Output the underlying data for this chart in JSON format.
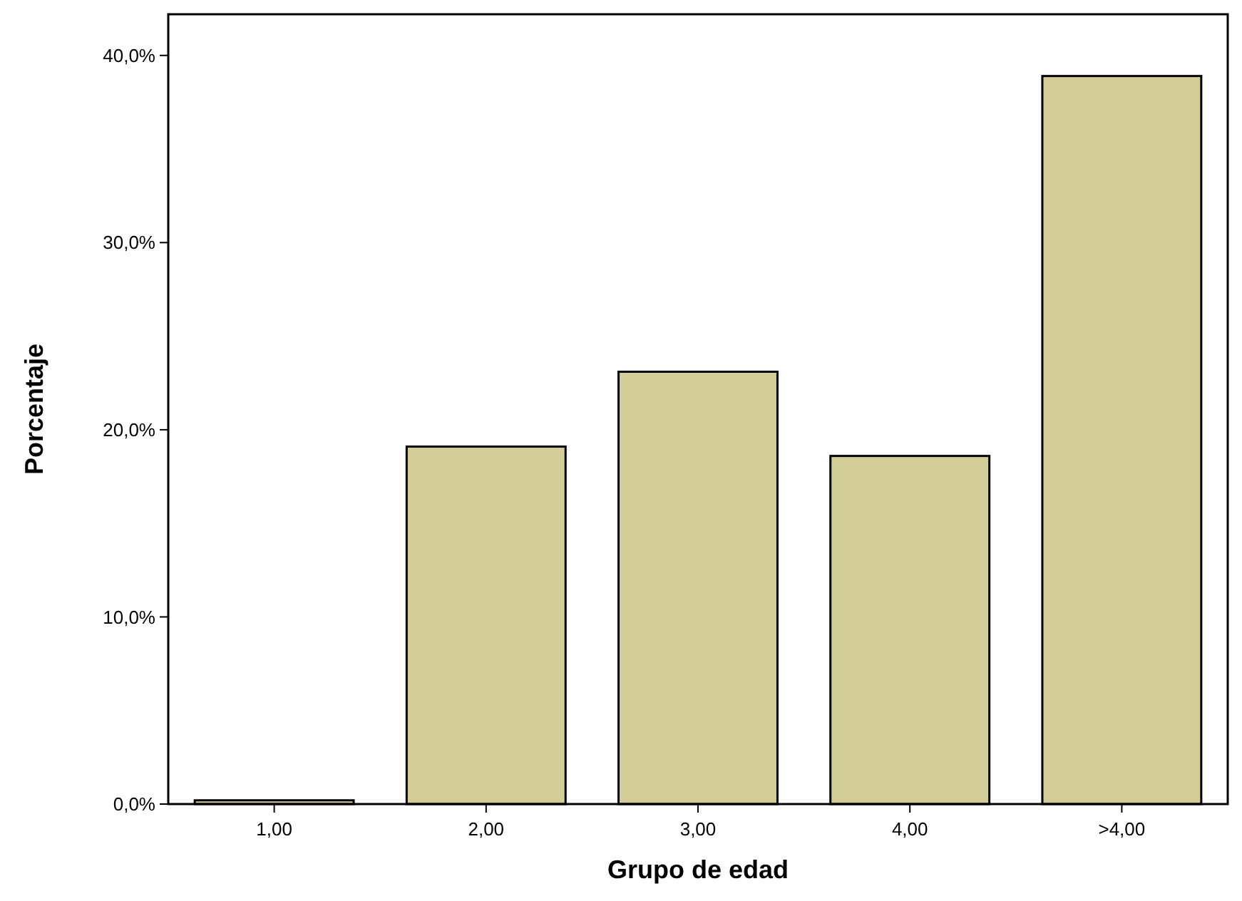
{
  "chart_data": {
    "type": "bar",
    "xlabel": "Grupo de edad",
    "ylabel": "Porcentaje",
    "categories": [
      "1,00",
      "2,00",
      "3,00",
      "4,00",
      ">4,00"
    ],
    "values": [
      0.2,
      19.1,
      23.1,
      18.6,
      38.9
    ],
    "color": "#d3ce98",
    "ylim": [
      0,
      42.2
    ],
    "yticks": [
      {
        "value": 0,
        "label": "0,0%"
      },
      {
        "value": 10,
        "label": "10,0%"
      },
      {
        "value": 20,
        "label": "20,0%"
      },
      {
        "value": 30,
        "label": "30,0%"
      },
      {
        "value": 40,
        "label": "40,0%"
      }
    ],
    "grid": false
  }
}
